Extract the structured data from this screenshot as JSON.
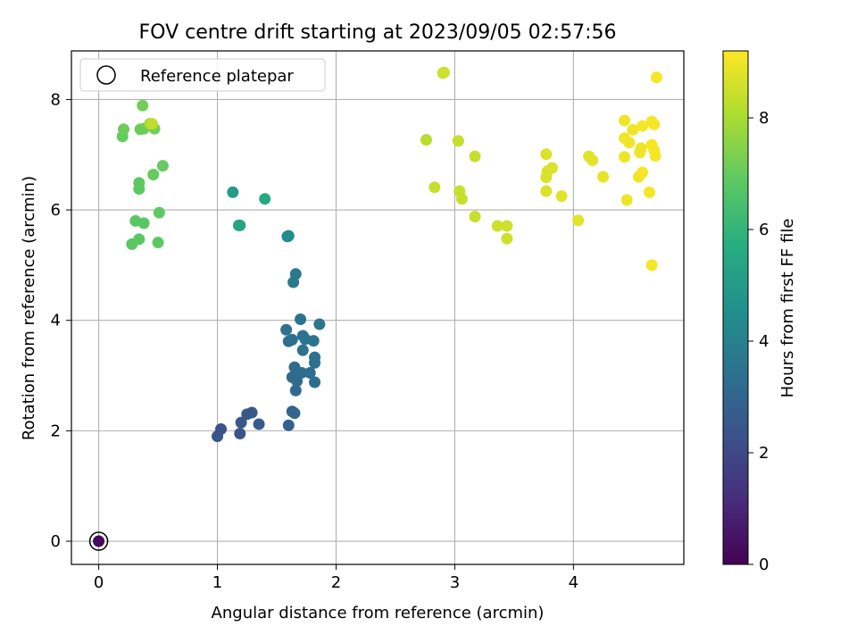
{
  "chart_data": {
    "type": "scatter",
    "title": "FOV centre drift starting at 2023/09/05 02:57:56",
    "xlabel": "Angular distance from reference (arcmin)",
    "ylabel": "Rotation from reference (arcmin)",
    "xlim": [
      -0.23,
      4.93
    ],
    "ylim": [
      -0.42,
      8.88
    ],
    "xticks": [
      0,
      1,
      2,
      3,
      4
    ],
    "yticks": [
      0,
      2,
      4,
      6,
      8
    ],
    "grid": true,
    "colormap": "viridis",
    "colorbar": {
      "label": "Hours from first FF file",
      "range": [
        0,
        9.2
      ],
      "ticks": [
        0,
        2,
        4,
        6,
        8
      ]
    },
    "legend": {
      "position": "top-left",
      "entries": [
        "Reference platepar"
      ]
    },
    "reference_point": {
      "x": 0,
      "y": 0,
      "marker": "hollow-circle"
    },
    "points": [
      {
        "x": 0.0,
        "y": 0.0,
        "c": 0.2
      },
      {
        "x": 1.0,
        "y": 1.9,
        "c": 2.3
      },
      {
        "x": 1.03,
        "y": 2.03,
        "c": 2.3
      },
      {
        "x": 1.19,
        "y": 1.95,
        "c": 2.4
      },
      {
        "x": 1.2,
        "y": 2.15,
        "c": 2.5
      },
      {
        "x": 1.25,
        "y": 2.3,
        "c": 2.5
      },
      {
        "x": 1.29,
        "y": 2.33,
        "c": 2.5
      },
      {
        "x": 1.35,
        "y": 2.12,
        "c": 2.6
      },
      {
        "x": 1.6,
        "y": 2.1,
        "c": 2.8
      },
      {
        "x": 1.63,
        "y": 2.35,
        "c": 2.9
      },
      {
        "x": 1.65,
        "y": 2.32,
        "c": 3.0
      },
      {
        "x": 1.66,
        "y": 2.73,
        "c": 3.1
      },
      {
        "x": 1.63,
        "y": 2.97,
        "c": 3.1
      },
      {
        "x": 1.67,
        "y": 2.9,
        "c": 3.2
      },
      {
        "x": 1.65,
        "y": 3.15,
        "c": 3.2
      },
      {
        "x": 1.71,
        "y": 3.05,
        "c": 3.2
      },
      {
        "x": 1.78,
        "y": 3.05,
        "c": 3.3
      },
      {
        "x": 1.82,
        "y": 2.88,
        "c": 3.3
      },
      {
        "x": 1.82,
        "y": 3.23,
        "c": 3.3
      },
      {
        "x": 1.82,
        "y": 3.33,
        "c": 3.4
      },
      {
        "x": 1.72,
        "y": 3.46,
        "c": 3.4
      },
      {
        "x": 1.6,
        "y": 3.62,
        "c": 3.3
      },
      {
        "x": 1.63,
        "y": 3.65,
        "c": 3.4
      },
      {
        "x": 1.58,
        "y": 3.83,
        "c": 3.4
      },
      {
        "x": 1.72,
        "y": 3.72,
        "c": 3.5
      },
      {
        "x": 1.74,
        "y": 3.66,
        "c": 3.5
      },
      {
        "x": 1.81,
        "y": 3.63,
        "c": 3.5
      },
      {
        "x": 1.7,
        "y": 4.02,
        "c": 3.5
      },
      {
        "x": 1.86,
        "y": 3.93,
        "c": 3.6
      },
      {
        "x": 1.64,
        "y": 4.69,
        "c": 3.7
      },
      {
        "x": 1.66,
        "y": 4.84,
        "c": 3.7
      },
      {
        "x": 1.59,
        "y": 5.52,
        "c": 4.3
      },
      {
        "x": 1.6,
        "y": 5.53,
        "c": 4.4
      },
      {
        "x": 1.18,
        "y": 5.72,
        "c": 5.3
      },
      {
        "x": 1.19,
        "y": 5.72,
        "c": 5.4
      },
      {
        "x": 1.13,
        "y": 6.32,
        "c": 5.0
      },
      {
        "x": 1.4,
        "y": 6.2,
        "c": 5.5
      },
      {
        "x": 0.28,
        "y": 5.38,
        "c": 6.8
      },
      {
        "x": 0.34,
        "y": 5.47,
        "c": 6.8
      },
      {
        "x": 0.5,
        "y": 5.41,
        "c": 6.9
      },
      {
        "x": 0.31,
        "y": 5.8,
        "c": 6.8
      },
      {
        "x": 0.38,
        "y": 5.76,
        "c": 6.8
      },
      {
        "x": 0.51,
        "y": 5.95,
        "c": 6.9
      },
      {
        "x": 0.34,
        "y": 6.38,
        "c": 6.9
      },
      {
        "x": 0.34,
        "y": 6.49,
        "c": 6.9
      },
      {
        "x": 0.46,
        "y": 6.64,
        "c": 7.0
      },
      {
        "x": 0.54,
        "y": 6.8,
        "c": 7.0
      },
      {
        "x": 0.2,
        "y": 7.33,
        "c": 7.0
      },
      {
        "x": 0.21,
        "y": 7.46,
        "c": 7.1
      },
      {
        "x": 0.35,
        "y": 7.46,
        "c": 7.1
      },
      {
        "x": 0.38,
        "y": 7.47,
        "c": 7.1
      },
      {
        "x": 0.47,
        "y": 7.47,
        "c": 7.2
      },
      {
        "x": 0.37,
        "y": 7.89,
        "c": 7.2
      },
      {
        "x": 0.43,
        "y": 7.56,
        "c": 7.8
      },
      {
        "x": 0.45,
        "y": 7.56,
        "c": 8.3
      },
      {
        "x": 2.76,
        "y": 7.27,
        "c": 8.2
      },
      {
        "x": 2.9,
        "y": 8.48,
        "c": 8.4
      },
      {
        "x": 2.91,
        "y": 8.49,
        "c": 8.5
      },
      {
        "x": 2.83,
        "y": 6.41,
        "c": 8.4
      },
      {
        "x": 3.03,
        "y": 7.25,
        "c": 8.4
      },
      {
        "x": 3.04,
        "y": 6.34,
        "c": 8.4
      },
      {
        "x": 3.06,
        "y": 6.2,
        "c": 8.4
      },
      {
        "x": 3.17,
        "y": 6.97,
        "c": 8.4
      },
      {
        "x": 3.17,
        "y": 5.88,
        "c": 8.4
      },
      {
        "x": 3.36,
        "y": 5.71,
        "c": 8.5
      },
      {
        "x": 3.44,
        "y": 5.71,
        "c": 8.5
      },
      {
        "x": 3.44,
        "y": 5.48,
        "c": 8.5
      },
      {
        "x": 3.77,
        "y": 7.01,
        "c": 8.7
      },
      {
        "x": 3.78,
        "y": 6.7,
        "c": 8.7
      },
      {
        "x": 3.82,
        "y": 6.76,
        "c": 8.7
      },
      {
        "x": 3.77,
        "y": 6.59,
        "c": 8.7
      },
      {
        "x": 3.77,
        "y": 6.34,
        "c": 8.7
      },
      {
        "x": 3.9,
        "y": 6.25,
        "c": 8.8
      },
      {
        "x": 4.04,
        "y": 5.81,
        "c": 8.8
      },
      {
        "x": 4.13,
        "y": 6.97,
        "c": 8.8
      },
      {
        "x": 4.16,
        "y": 6.9,
        "c": 8.8
      },
      {
        "x": 4.25,
        "y": 6.6,
        "c": 8.9
      },
      {
        "x": 4.43,
        "y": 7.62,
        "c": 9.0
      },
      {
        "x": 4.43,
        "y": 7.3,
        "c": 9.0
      },
      {
        "x": 4.47,
        "y": 7.22,
        "c": 9.0
      },
      {
        "x": 4.5,
        "y": 7.45,
        "c": 9.0
      },
      {
        "x": 4.43,
        "y": 6.96,
        "c": 9.0
      },
      {
        "x": 4.45,
        "y": 6.18,
        "c": 9.0
      },
      {
        "x": 4.55,
        "y": 6.6,
        "c": 9.0
      },
      {
        "x": 4.56,
        "y": 7.04,
        "c": 9.0
      },
      {
        "x": 4.57,
        "y": 7.12,
        "c": 9.0
      },
      {
        "x": 4.58,
        "y": 6.68,
        "c": 9.1
      },
      {
        "x": 4.58,
        "y": 7.52,
        "c": 9.1
      },
      {
        "x": 4.64,
        "y": 6.32,
        "c": 9.1
      },
      {
        "x": 4.66,
        "y": 7.6,
        "c": 9.1
      },
      {
        "x": 4.66,
        "y": 7.18,
        "c": 9.1
      },
      {
        "x": 4.68,
        "y": 7.08,
        "c": 9.1
      },
      {
        "x": 4.68,
        "y": 7.55,
        "c": 9.1
      },
      {
        "x": 4.69,
        "y": 6.98,
        "c": 9.1
      },
      {
        "x": 4.66,
        "y": 5.0,
        "c": 9.1
      },
      {
        "x": 4.7,
        "y": 8.4,
        "c": 9.1
      }
    ]
  }
}
